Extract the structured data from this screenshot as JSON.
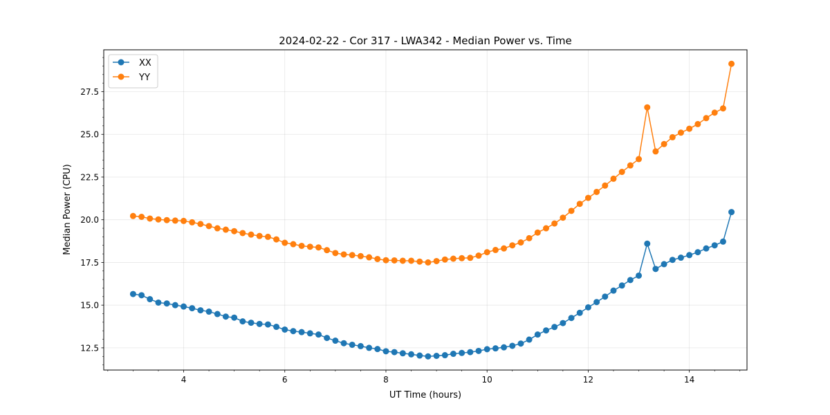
{
  "chart_data": {
    "type": "line",
    "title": "2024-02-22 - Cor 317 - LWA342 - Median Power vs. Time",
    "xlabel": "UT Time (hours)",
    "ylabel": "Median Power (CPU)",
    "xlim": [
      2.42,
      15.14
    ],
    "ylim": [
      11.2,
      29.95
    ],
    "xticks": [
      4,
      6,
      8,
      10,
      12,
      14
    ],
    "xtick_labels": [
      "4",
      "6",
      "8",
      "10",
      "12",
      "14"
    ],
    "yticks": [
      12.5,
      15.0,
      17.5,
      20.0,
      22.5,
      25.0,
      27.5
    ],
    "ytick_labels": [
      "12.5",
      "15.0",
      "17.5",
      "20.0",
      "22.5",
      "25.0",
      "27.5"
    ],
    "grid": true,
    "legend_position": "top-left",
    "x": [
      3.0,
      3.167,
      3.333,
      3.5,
      3.667,
      3.833,
      4.0,
      4.167,
      4.333,
      4.5,
      4.667,
      4.833,
      5.0,
      5.167,
      5.333,
      5.5,
      5.667,
      5.833,
      6.0,
      6.167,
      6.333,
      6.5,
      6.667,
      6.833,
      7.0,
      7.167,
      7.333,
      7.5,
      7.667,
      7.833,
      8.0,
      8.167,
      8.333,
      8.5,
      8.667,
      8.833,
      9.0,
      9.167,
      9.333,
      9.5,
      9.667,
      9.833,
      10.0,
      10.167,
      10.333,
      10.5,
      10.667,
      10.833,
      11.0,
      11.167,
      11.333,
      11.5,
      11.667,
      11.833,
      12.0,
      12.167,
      12.333,
      12.5,
      12.667,
      12.833,
      13.0,
      13.167,
      13.333,
      13.5,
      13.667,
      13.833,
      14.0,
      14.167,
      14.333,
      14.5,
      14.667,
      14.833
    ],
    "series": [
      {
        "name": "XX",
        "color": "#1f77b4",
        "values": [
          15.65,
          15.58,
          15.35,
          15.15,
          15.1,
          15.0,
          14.92,
          14.82,
          14.7,
          14.62,
          14.48,
          14.33,
          14.27,
          14.05,
          13.97,
          13.9,
          13.87,
          13.73,
          13.57,
          13.48,
          13.42,
          13.35,
          13.28,
          13.08,
          12.92,
          12.77,
          12.68,
          12.6,
          12.5,
          12.43,
          12.3,
          12.25,
          12.18,
          12.12,
          12.05,
          12.0,
          12.03,
          12.07,
          12.15,
          12.2,
          12.25,
          12.32,
          12.42,
          12.47,
          12.53,
          12.62,
          12.75,
          12.98,
          13.28,
          13.52,
          13.72,
          13.95,
          14.25,
          14.55,
          14.87,
          15.18,
          15.5,
          15.85,
          16.15,
          16.47,
          16.73,
          18.6,
          17.12,
          17.4,
          17.65,
          17.78,
          17.93,
          18.1,
          18.32,
          18.5,
          18.72,
          20.45
        ]
      },
      {
        "name": "YY",
        "color": "#ff7f0e",
        "values": [
          20.22,
          20.17,
          20.07,
          20.02,
          19.98,
          19.95,
          19.93,
          19.85,
          19.75,
          19.63,
          19.5,
          19.42,
          19.33,
          19.22,
          19.13,
          19.05,
          19.0,
          18.85,
          18.65,
          18.57,
          18.47,
          18.42,
          18.38,
          18.22,
          18.05,
          17.97,
          17.93,
          17.87,
          17.8,
          17.7,
          17.63,
          17.62,
          17.6,
          17.6,
          17.55,
          17.5,
          17.58,
          17.67,
          17.72,
          17.75,
          17.77,
          17.9,
          18.1,
          18.23,
          18.32,
          18.5,
          18.67,
          18.92,
          19.25,
          19.5,
          19.78,
          20.12,
          20.52,
          20.93,
          21.28,
          21.63,
          22.0,
          22.4,
          22.8,
          23.18,
          23.55,
          26.58,
          24.0,
          24.43,
          24.83,
          25.1,
          25.33,
          25.6,
          25.95,
          26.27,
          26.52,
          29.13
        ]
      }
    ]
  }
}
